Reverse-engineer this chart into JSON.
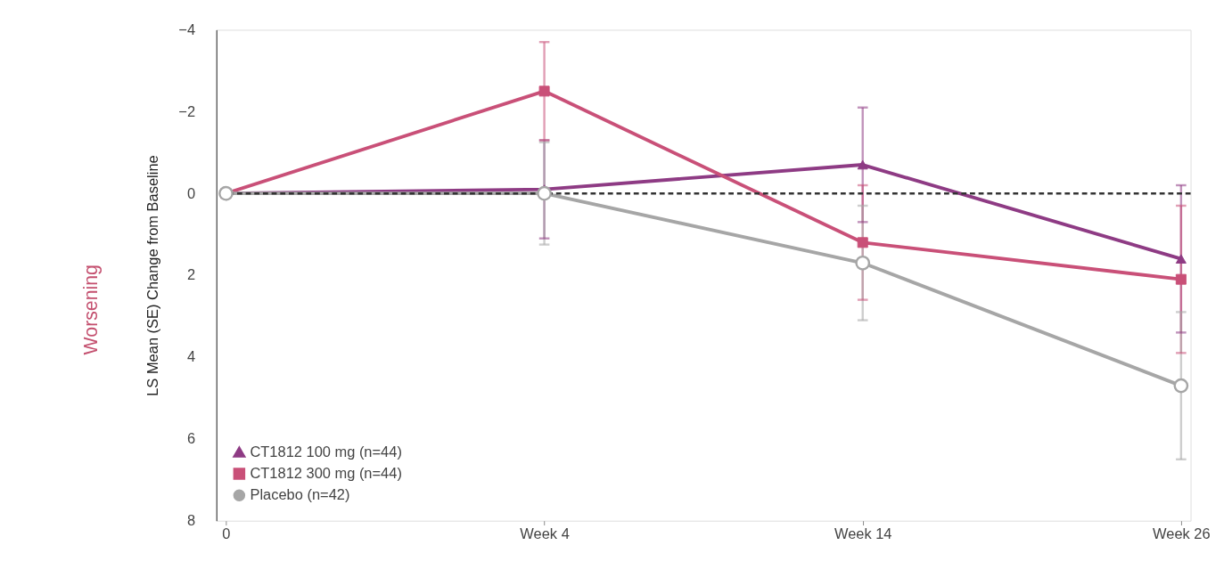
{
  "chart_data": {
    "type": "line",
    "ylabel": "LS Mean (SE) Change from Baseline",
    "categories": [
      "0",
      "Week 4",
      "Week 14",
      "Week 26"
    ],
    "ylim": [
      8,
      -4
    ],
    "yticks": [
      -4,
      -2,
      0,
      2,
      4,
      6,
      8
    ],
    "series": [
      {
        "name": "CT1812 100 mg (n=44)",
        "color": "#8e3b84",
        "marker": "triangle",
        "values": [
          0,
          -0.1,
          -0.7,
          1.6
        ],
        "errors": [
          null,
          1.2,
          1.4,
          1.8
        ]
      },
      {
        "name": "CT1812 300 mg (n=44)",
        "color": "#c95078",
        "marker": "square",
        "values": [
          0,
          -2.5,
          1.2,
          2.1
        ],
        "errors": [
          null,
          1.2,
          1.4,
          1.8
        ]
      },
      {
        "name": "Placebo (n=42)",
        "color": "#a6a6a6",
        "marker": "circle",
        "values": [
          0,
          0,
          1.7,
          4.7
        ],
        "errors": [
          null,
          1.25,
          1.4,
          1.8
        ]
      }
    ],
    "ref_lines": [
      {
        "axis": "y",
        "value": 0,
        "color": "#333333",
        "line_style": "dashed"
      }
    ],
    "annotations": [
      "Worsening"
    ],
    "grid": false,
    "legend": "bottom left",
    "line_style": "solid"
  }
}
